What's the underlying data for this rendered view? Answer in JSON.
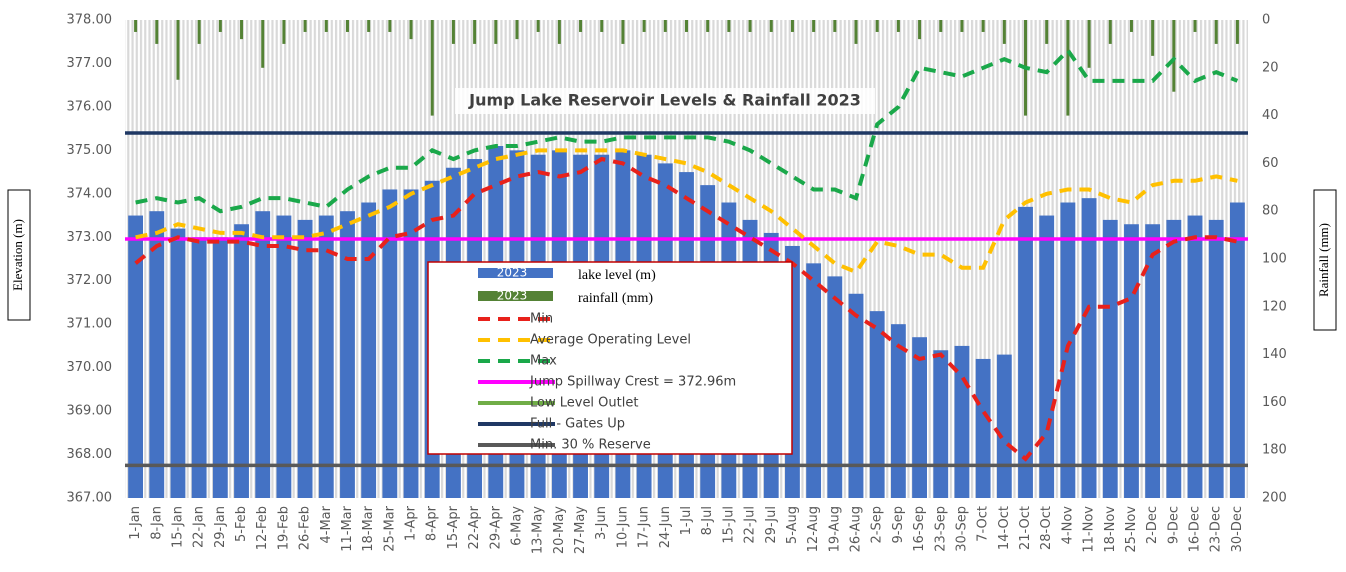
{
  "chart_data": {
    "type": "combo",
    "title": "Jump Lake Reservoir Levels & Rainfall 2023",
    "y_label": "Elevation (m)",
    "y2_label": "Rainfall (mm)",
    "categories": [
      "1-Jan",
      "8-Jan",
      "15-Jan",
      "22-Jan",
      "29-Jan",
      "5-Feb",
      "12-Feb",
      "19-Feb",
      "26-Feb",
      "4-Mar",
      "11-Mar",
      "18-Mar",
      "25-Mar",
      "1-Apr",
      "8-Apr",
      "15-Apr",
      "22-Apr",
      "29-Apr",
      "6-May",
      "13-May",
      "20-May",
      "27-May",
      "3-Jun",
      "10-Jun",
      "17-Jun",
      "24-Jun",
      "1-Jul",
      "8-Jul",
      "15-Jul",
      "22-Jul",
      "29-Jul",
      "5-Aug",
      "12-Aug",
      "19-Aug",
      "26-Aug",
      "2-Sep",
      "9-Sep",
      "16-Sep",
      "23-Sep",
      "30-Sep",
      "7-Oct",
      "14-Oct",
      "21-Oct",
      "28-Oct",
      "4-Nov",
      "11-Nov",
      "18-Nov",
      "25-Nov",
      "2-Dec",
      "9-Dec",
      "16-Dec",
      "23-Dec",
      "30-Dec"
    ],
    "series": [
      {
        "name": "2023",
        "note": "lake level (m)",
        "kind": "bar",
        "color": "#4472c4",
        "values": [
          373.5,
          373.6,
          373.2,
          373.0,
          373.0,
          373.3,
          373.6,
          373.5,
          373.4,
          373.5,
          373.6,
          373.8,
          374.1,
          374.1,
          374.3,
          374.6,
          374.8,
          375.1,
          375.0,
          374.9,
          375.0,
          374.9,
          374.9,
          375.0,
          374.9,
          374.7,
          374.5,
          374.2,
          373.8,
          373.4,
          373.1,
          372.8,
          372.4,
          372.1,
          371.7,
          371.3,
          371.0,
          370.7,
          370.4,
          370.5,
          370.2,
          370.3,
          373.7,
          373.5,
          373.8,
          373.9,
          373.4,
          373.3,
          373.3,
          373.4,
          373.5,
          373.4,
          373.8
        ]
      },
      {
        "name": "2023",
        "note": "rainfall (mm)",
        "kind": "bar",
        "axis": "y2",
        "color": "#548235",
        "values": [
          5,
          10,
          25,
          10,
          5,
          8,
          20,
          10,
          5,
          5,
          5,
          5,
          5,
          8,
          40,
          10,
          10,
          10,
          8,
          5,
          10,
          5,
          5,
          10,
          5,
          5,
          5,
          5,
          5,
          5,
          5,
          5,
          5,
          5,
          10,
          5,
          5,
          8,
          5,
          5,
          5,
          10,
          40,
          10,
          40,
          20,
          10,
          5,
          15,
          30,
          5,
          10,
          10
        ]
      },
      {
        "name": "Min",
        "kind": "line",
        "color": "#e8211b",
        "values": [
          372.4,
          372.8,
          373.0,
          372.9,
          372.9,
          372.9,
          372.8,
          372.8,
          372.7,
          372.7,
          372.5,
          372.5,
          373.0,
          373.1,
          373.4,
          373.5,
          374.0,
          374.2,
          374.4,
          374.5,
          374.4,
          374.5,
          374.8,
          374.7,
          374.4,
          374.2,
          373.9,
          373.6,
          373.3,
          373.0,
          372.7,
          372.4,
          372.0,
          371.6,
          371.2,
          370.9,
          370.5,
          370.2,
          370.3,
          369.8,
          369.0,
          368.3,
          367.9,
          368.5,
          370.5,
          371.4,
          371.4,
          371.6,
          372.6,
          372.9,
          373.0,
          373.0,
          372.9
        ]
      },
      {
        "name": "Average Operating Level",
        "kind": "line",
        "color": "#ffc000",
        "values": [
          373.0,
          373.1,
          373.3,
          373.2,
          373.1,
          373.1,
          373.0,
          373.0,
          373.0,
          373.1,
          373.3,
          373.5,
          373.7,
          374.0,
          374.2,
          374.4,
          374.6,
          374.8,
          374.9,
          375.0,
          375.0,
          375.0,
          375.0,
          375.0,
          374.9,
          374.8,
          374.7,
          374.5,
          374.2,
          373.9,
          373.6,
          373.2,
          372.8,
          372.4,
          372.2,
          372.9,
          372.8,
          372.6,
          372.6,
          372.3,
          372.3,
          373.4,
          373.8,
          374.0,
          374.1,
          374.1,
          373.9,
          373.8,
          374.2,
          374.3,
          374.3,
          374.4,
          374.3
        ]
      },
      {
        "name": "Max",
        "kind": "line",
        "color": "#1aa84a",
        "values": [
          373.8,
          373.9,
          373.8,
          373.9,
          373.6,
          373.7,
          373.9,
          373.9,
          373.8,
          373.7,
          374.1,
          374.4,
          374.6,
          374.6,
          375.0,
          374.8,
          375.0,
          375.1,
          375.1,
          375.2,
          375.3,
          375.2,
          375.2,
          375.3,
          375.3,
          375.3,
          375.3,
          375.3,
          375.2,
          375.0,
          374.7,
          374.4,
          374.1,
          374.1,
          373.9,
          375.6,
          376.0,
          376.9,
          376.8,
          376.7,
          376.9,
          377.1,
          376.9,
          376.8,
          377.3,
          376.6,
          376.6,
          376.6,
          376.6,
          377.1,
          376.6,
          376.8,
          376.6
        ]
      }
    ],
    "reference_lines": [
      {
        "name": "Jump Spillway Crest = 372.96m",
        "color": "#ff00ff",
        "value": 372.96
      },
      {
        "name": "Low Level Outlet",
        "color": "#70ad47"
      },
      {
        "name": "Full - Gates Up",
        "color": "#1f3864",
        "value": 375.4
      },
      {
        "name": "Min. 30 % Reserve",
        "color": "#595959",
        "value": 367.75
      }
    ],
    "ylim": [
      367,
      378
    ],
    "yticks": [
      {
        "value": 367,
        "label": "367.00"
      },
      {
        "value": 368,
        "label": "368.00"
      },
      {
        "value": 369,
        "label": "369.00"
      },
      {
        "value": 370,
        "label": "370.00"
      },
      {
        "value": 371,
        "label": "371.00"
      },
      {
        "value": 372,
        "label": "372.00"
      },
      {
        "value": 373,
        "label": "373.00"
      },
      {
        "value": 374,
        "label": "374.00"
      },
      {
        "value": 375,
        "label": "375.00"
      },
      {
        "value": 376,
        "label": "376.00"
      },
      {
        "value": 377,
        "label": "377.00"
      },
      {
        "value": 378,
        "label": "378.00"
      }
    ],
    "y2lim": [
      200,
      0
    ],
    "y2_inverted": true,
    "y2ticks": [
      0,
      20,
      40,
      60,
      80,
      100,
      120,
      140,
      160,
      180,
      200
    ]
  }
}
